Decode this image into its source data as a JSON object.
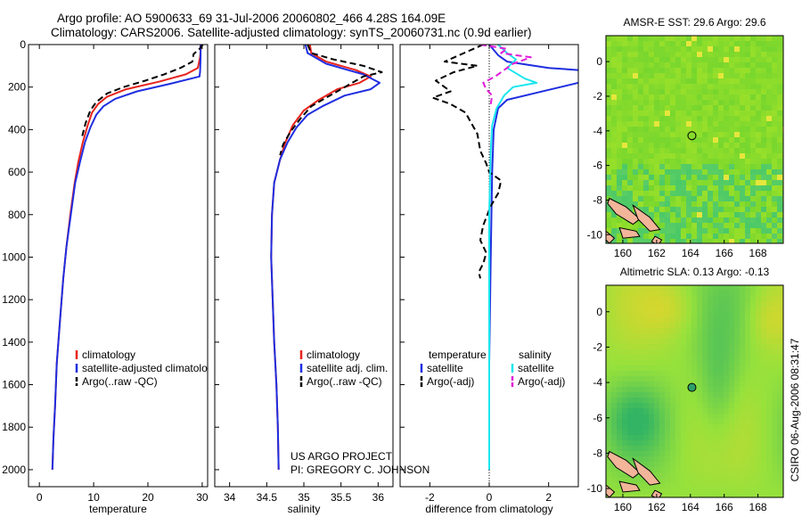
{
  "header": {
    "title_line1": "Argo profile: AO 5900633_69 31-Jul-2006 20060802_466 4.28S 164.09E",
    "title_line2": "Climatology: CARS2006. Satellite-adjusted climatology: synTS_20060731.nc (0.9d earlier)"
  },
  "credits": {
    "project": "US ARGO PROJECT",
    "pi": "PI: GREGORY C. JOHNSON",
    "stamp": "CSIRO 06-Aug-2006 08:31:47"
  },
  "colors": {
    "climatology": "#e8231c",
    "satellite": "#1f2ee0",
    "argo": "#000000",
    "sat_salinity": "#19e6ee",
    "argo_salinity": "#e01ad8"
  },
  "chart_data": [
    {
      "type": "line",
      "name": "temperature-panel",
      "xlabel": "temperature",
      "ylabel": "",
      "xlim": [
        -2,
        31
      ],
      "ylim": [
        2080,
        0
      ],
      "xticks": [
        0,
        10,
        20,
        30
      ],
      "yticks": [
        0,
        200,
        400,
        600,
        800,
        1000,
        1200,
        1400,
        1600,
        1800,
        2000
      ],
      "legend": [
        "climatology",
        "satellite-adjusted climatology",
        "Argo(..raw -QC)"
      ],
      "series": [
        {
          "name": "climatology",
          "color": "#e8231c",
          "style": "solid",
          "points": [
            [
              29.8,
              0
            ],
            [
              29.6,
              60
            ],
            [
              29.2,
              110
            ],
            [
              27,
              140
            ],
            [
              22,
              175
            ],
            [
              16,
              210
            ],
            [
              12.5,
              245
            ],
            [
              10.8,
              280
            ],
            [
              9.7,
              320
            ],
            [
              8.9,
              380
            ],
            [
              8,
              460
            ],
            [
              7.2,
              550
            ],
            [
              6.5,
              650
            ],
            [
              5.7,
              800
            ],
            [
              5,
              950
            ],
            [
              4.4,
              1100
            ],
            [
              3.8,
              1300
            ],
            [
              3.2,
              1500
            ],
            [
              2.9,
              1700
            ],
            [
              2.6,
              1850
            ],
            [
              2.4,
              2000
            ]
          ]
        },
        {
          "name": "satellite-adjusted climatology",
          "color": "#1f2ee0",
          "style": "solid",
          "points": [
            [
              29.7,
              0
            ],
            [
              29.7,
              60
            ],
            [
              29.6,
              130
            ],
            [
              29.5,
              150
            ],
            [
              24,
              185
            ],
            [
              18,
              220
            ],
            [
              14,
              255
            ],
            [
              11.8,
              290
            ],
            [
              10.5,
              330
            ],
            [
              9.4,
              390
            ],
            [
              8.4,
              460
            ],
            [
              7.5,
              550
            ],
            [
              6.6,
              650
            ],
            [
              5.8,
              800
            ],
            [
              5,
              950
            ],
            [
              4.4,
              1100
            ],
            [
              3.8,
              1300
            ],
            [
              3.2,
              1500
            ],
            [
              2.9,
              1700
            ],
            [
              2.6,
              1850
            ],
            [
              2.4,
              2000
            ]
          ]
        },
        {
          "name": "Argo(..raw -QC)",
          "color": "#000000",
          "style": "dashed",
          "points": [
            [
              30.1,
              0
            ],
            [
              29.5,
              20
            ],
            [
              28.4,
              45
            ],
            [
              28.2,
              80
            ],
            [
              26,
              110
            ],
            [
              23,
              140
            ],
            [
              19.5,
              170
            ],
            [
              15.5,
              200
            ],
            [
              12.5,
              230
            ],
            [
              10.5,
              270
            ],
            [
              9.4,
              310
            ],
            [
              8.5,
              370
            ],
            [
              7.9,
              430
            ]
          ]
        }
      ]
    },
    {
      "type": "line",
      "name": "salinity-panel",
      "xlabel": "salinity",
      "xlim": [
        33.8,
        36.2
      ],
      "ylim": [
        2080,
        0
      ],
      "xticks": [
        34,
        34.5,
        35,
        35.5,
        36
      ],
      "legend": [
        "climatology",
        "satellite adj. clim.",
        "Argo(..raw -QC)"
      ],
      "series": [
        {
          "name": "climatology",
          "color": "#e8231c",
          "style": "solid",
          "points": [
            [
              35.08,
              0
            ],
            [
              35.1,
              40
            ],
            [
              35.3,
              80
            ],
            [
              35.7,
              120
            ],
            [
              35.9,
              150
            ],
            [
              35.75,
              180
            ],
            [
              35.45,
              210
            ],
            [
              35.2,
              260
            ],
            [
              35.0,
              310
            ],
            [
              34.85,
              380
            ],
            [
              34.75,
              460
            ],
            [
              34.68,
              540
            ],
            [
              34.6,
              650
            ],
            [
              34.57,
              800
            ],
            [
              34.56,
              1000
            ],
            [
              34.58,
              1200
            ],
            [
              34.6,
              1400
            ],
            [
              34.63,
              1600
            ],
            [
              34.65,
              1800
            ],
            [
              34.66,
              2000
            ]
          ]
        },
        {
          "name": "satellite adj. clim.",
          "color": "#1f2ee0",
          "style": "solid",
          "points": [
            [
              35.02,
              0
            ],
            [
              35.05,
              40
            ],
            [
              35.3,
              90
            ],
            [
              35.8,
              140
            ],
            [
              36.02,
              180
            ],
            [
              35.9,
              210
            ],
            [
              35.55,
              240
            ],
            [
              35.25,
              290
            ],
            [
              35.05,
              330
            ],
            [
              34.9,
              390
            ],
            [
              34.78,
              460
            ],
            [
              34.68,
              540
            ],
            [
              34.6,
              650
            ],
            [
              34.57,
              800
            ],
            [
              34.56,
              1000
            ],
            [
              34.58,
              1200
            ],
            [
              34.6,
              1400
            ],
            [
              34.63,
              1600
            ],
            [
              34.65,
              1800
            ],
            [
              34.66,
              2000
            ]
          ]
        },
        {
          "name": "Argo(..raw -QC)",
          "color": "#000000",
          "style": "dashed",
          "points": [
            [
              35.05,
              0
            ],
            [
              35.1,
              40
            ],
            [
              35.4,
              70
            ],
            [
              35.8,
              100
            ],
            [
              36.05,
              130
            ],
            [
              35.8,
              150
            ],
            [
              35.55,
              200
            ],
            [
              35.35,
              240
            ],
            [
              35.1,
              290
            ],
            [
              34.95,
              350
            ],
            [
              34.82,
              410
            ],
            [
              34.72,
              470
            ],
            [
              34.68,
              520
            ]
          ]
        }
      ]
    },
    {
      "type": "line",
      "name": "difference-panel",
      "xlabel": "difference from climatology",
      "xlim": [
        -3,
        3
      ],
      "ylim": [
        2080,
        0
      ],
      "xticks": [
        -2,
        0,
        2
      ],
      "legend_temperature_title": "temperature",
      "legend_salinity_title": "salinity",
      "legend": [
        "satellite",
        "Argo(-adj)",
        "satellite",
        "Argo(-adj)"
      ],
      "series": [
        {
          "name": "temperature satellite",
          "color": "#1f2ee0",
          "style": "solid",
          "points": [
            [
              0,
              0
            ],
            [
              0.3,
              50
            ],
            [
              0.6,
              80
            ],
            [
              2,
              110
            ],
            [
              3,
              120
            ],
            [
              3.3,
              150
            ],
            [
              3.3,
              170
            ],
            [
              1.5,
              230
            ],
            [
              0.6,
              260
            ],
            [
              0.3,
              300
            ],
            [
              0.15,
              400
            ],
            [
              0.1,
              600
            ],
            [
              0.05,
              1000
            ],
            [
              0,
              1500
            ],
            [
              0,
              2000
            ]
          ]
        },
        {
          "name": "temperature Argo(-adj)",
          "color": "#000000",
          "style": "dashed",
          "points": [
            [
              -0.2,
              0
            ],
            [
              -1.5,
              80
            ],
            [
              -0.4,
              100
            ],
            [
              -1.2,
              130
            ],
            [
              -1.8,
              170
            ],
            [
              -1.3,
              220
            ],
            [
              -1.9,
              250
            ],
            [
              -1.3,
              280
            ],
            [
              -0.8,
              320
            ],
            [
              -0.4,
              420
            ],
            [
              -0.3,
              500
            ],
            [
              -0.1,
              560
            ],
            [
              0,
              600
            ],
            [
              0.4,
              640
            ],
            [
              0.3,
              700
            ],
            [
              0.05,
              760
            ],
            [
              -0.2,
              850
            ],
            [
              -0.3,
              920
            ],
            [
              -0.1,
              980
            ],
            [
              -0.2,
              1030
            ],
            [
              -0.35,
              1070
            ],
            [
              -0.3,
              1100
            ]
          ]
        },
        {
          "name": "salinity satellite",
          "color": "#19e6ee",
          "style": "solid",
          "points": [
            [
              0.3,
              0
            ],
            [
              0.6,
              40
            ],
            [
              0.9,
              70
            ],
            [
              0.6,
              110
            ],
            [
              1.2,
              160
            ],
            [
              1.6,
              180
            ],
            [
              0.8,
              200
            ],
            [
              0.5,
              240
            ],
            [
              0.25,
              300
            ],
            [
              0.1,
              380
            ],
            [
              0.05,
              500
            ],
            [
              0,
              800
            ],
            [
              0,
              2000
            ]
          ]
        },
        {
          "name": "salinity Argo(-adj)",
          "color": "#e01ad8",
          "style": "dashed",
          "points": [
            [
              -0.3,
              0
            ],
            [
              0.6,
              20
            ],
            [
              0.4,
              40
            ],
            [
              1.4,
              60
            ],
            [
              0.8,
              90
            ],
            [
              0.5,
              120
            ],
            [
              0.2,
              150
            ],
            [
              -0.2,
              180
            ],
            [
              -0.1,
              210
            ],
            [
              0.1,
              240
            ],
            [
              0.05,
              280
            ]
          ]
        }
      ]
    },
    {
      "type": "heatmap",
      "name": "sst-map",
      "title": "AMSR-E SST: 29.6 Argo: 29.6",
      "xlim": [
        159,
        169.5
      ],
      "ylim": [
        -10.5,
        1.5
      ],
      "xticks": [
        160,
        162,
        164,
        166,
        168
      ],
      "yticks": [
        0,
        -2,
        -4,
        -6,
        -8,
        -10
      ],
      "argo_position": [
        164.09,
        -4.28
      ]
    },
    {
      "type": "heatmap",
      "name": "sla-map",
      "title": "Altimetric SLA: 0.13 Argo: -0.13",
      "xlim": [
        159,
        169.5
      ],
      "ylim": [
        -10.5,
        1.5
      ],
      "xticks": [
        160,
        162,
        164,
        166,
        168
      ],
      "yticks": [
        0,
        -2,
        -4,
        -6,
        -8,
        -10
      ],
      "argo_position": [
        164.09,
        -4.28
      ]
    }
  ]
}
